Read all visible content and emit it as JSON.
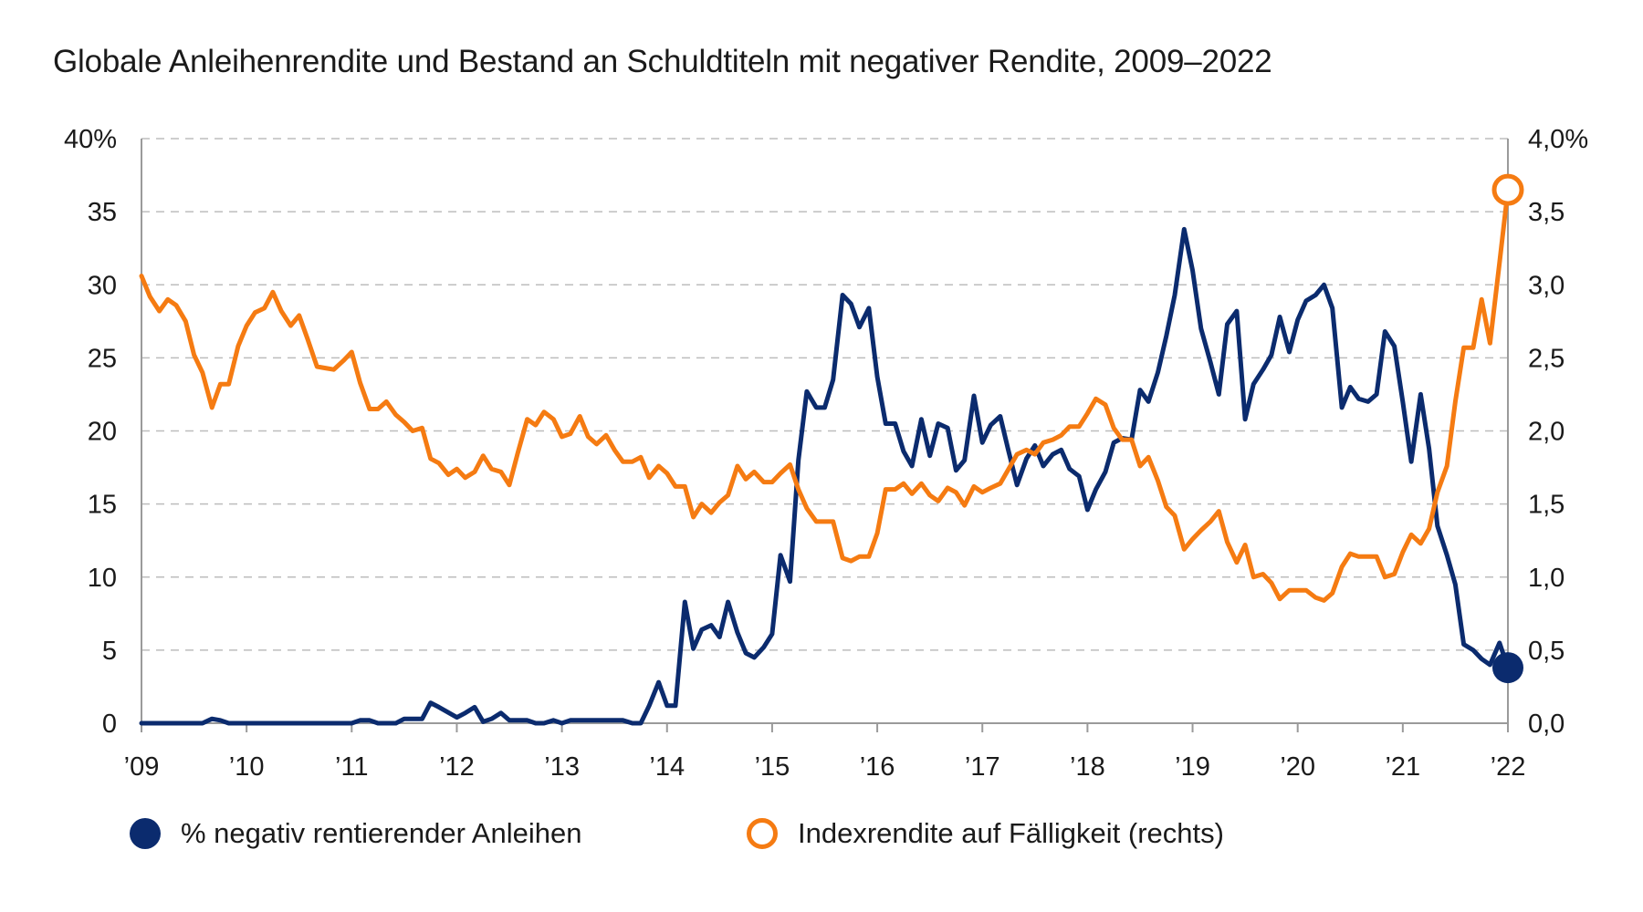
{
  "colors": {
    "negative": "#0b2b6e",
    "yield": "#f57b12",
    "grid": "#bdbdbd",
    "axis": "#9a9a9a"
  },
  "chart_data": {
    "type": "line",
    "title": "Globale Anleihenrendite und Bestand an Schuldtiteln mit negativer Rendite, 2009–2022",
    "x_tick_labels": [
      "’09",
      "’10",
      "’11",
      "’12",
      "’13",
      "’14",
      "’15",
      "’16",
      "’17",
      "’18",
      "’19",
      "’20",
      "’21",
      "’22"
    ],
    "x_range": [
      2009,
      2022
    ],
    "y_left": {
      "range": [
        0,
        40
      ],
      "ticks": [
        0,
        5,
        10,
        15,
        20,
        25,
        30,
        35,
        40
      ],
      "tick_labels": [
        "0",
        "5",
        "10",
        "15",
        "20",
        "25",
        "30",
        "35",
        "40%"
      ]
    },
    "y_right": {
      "range": [
        0,
        4
      ],
      "ticks": [
        0,
        0.5,
        1,
        1.5,
        2,
        2.5,
        3,
        3.5,
        4
      ],
      "tick_labels": [
        "0,0",
        "0,5",
        "1,0",
        "1,5",
        "2,0",
        "2,5",
        "3,0",
        "3,5",
        "4,0%"
      ]
    },
    "grid": "horizontal dashed",
    "legend_position": "bottom",
    "series": [
      {
        "name": "% negativ rentierender Anleihen",
        "axis": "left",
        "points": [
          [
            2009.0,
            0
          ],
          [
            2009.58,
            0
          ],
          [
            2009.67,
            0.3
          ],
          [
            2009.75,
            0.2
          ],
          [
            2009.83,
            0
          ],
          [
            2011.0,
            0
          ],
          [
            2011.08,
            0.2
          ],
          [
            2011.17,
            0.2
          ],
          [
            2011.25,
            0
          ],
          [
            2011.42,
            0
          ],
          [
            2011.5,
            0.3
          ],
          [
            2011.67,
            0.3
          ],
          [
            2011.75,
            1.4
          ],
          [
            2011.83,
            1.1
          ],
          [
            2012.0,
            0.4
          ],
          [
            2012.08,
            0.7
          ],
          [
            2012.17,
            1.1
          ],
          [
            2012.25,
            0.1
          ],
          [
            2012.33,
            0.3
          ],
          [
            2012.42,
            0.7
          ],
          [
            2012.5,
            0.2
          ],
          [
            2012.67,
            0.2
          ],
          [
            2012.75,
            0
          ],
          [
            2012.83,
            0
          ],
          [
            2012.92,
            0.2
          ],
          [
            2013.0,
            0
          ],
          [
            2013.08,
            0.2
          ],
          [
            2013.33,
            0.2
          ],
          [
            2013.58,
            0.2
          ],
          [
            2013.67,
            0
          ],
          [
            2013.75,
            0
          ],
          [
            2013.83,
            1.2
          ],
          [
            2013.92,
            2.8
          ],
          [
            2014.0,
            1.2
          ],
          [
            2014.08,
            1.2
          ],
          [
            2014.17,
            8.3
          ],
          [
            2014.25,
            5.1
          ],
          [
            2014.33,
            6.4
          ],
          [
            2014.42,
            6.7
          ],
          [
            2014.5,
            5.9
          ],
          [
            2014.58,
            8.3
          ],
          [
            2014.67,
            6.2
          ],
          [
            2014.75,
            4.8
          ],
          [
            2014.83,
            4.5
          ],
          [
            2014.92,
            5.2
          ],
          [
            2015.0,
            6.1
          ],
          [
            2015.08,
            11.5
          ],
          [
            2015.17,
            9.7
          ],
          [
            2015.25,
            18
          ],
          [
            2015.33,
            22.7
          ],
          [
            2015.42,
            21.6
          ],
          [
            2015.5,
            21.6
          ],
          [
            2015.58,
            23.5
          ],
          [
            2015.67,
            29.3
          ],
          [
            2015.75,
            28.7
          ],
          [
            2015.83,
            27.1
          ],
          [
            2015.92,
            28.4
          ],
          [
            2016.0,
            23.7
          ],
          [
            2016.08,
            20.5
          ],
          [
            2016.17,
            20.5
          ],
          [
            2016.25,
            18.6
          ],
          [
            2016.33,
            17.6
          ],
          [
            2016.42,
            20.8
          ],
          [
            2016.5,
            18.3
          ],
          [
            2016.58,
            20.5
          ],
          [
            2016.67,
            20.2
          ],
          [
            2016.75,
            17.3
          ],
          [
            2016.83,
            18
          ],
          [
            2016.92,
            22.4
          ],
          [
            2017.0,
            19.2
          ],
          [
            2017.08,
            20.4
          ],
          [
            2017.17,
            21
          ],
          [
            2017.25,
            18.6
          ],
          [
            2017.33,
            16.3
          ],
          [
            2017.42,
            18.1
          ],
          [
            2017.5,
            19
          ],
          [
            2017.58,
            17.6
          ],
          [
            2017.67,
            18.4
          ],
          [
            2017.75,
            18.7
          ],
          [
            2017.83,
            17.4
          ],
          [
            2017.92,
            16.9
          ],
          [
            2018.0,
            14.6
          ],
          [
            2018.08,
            16
          ],
          [
            2018.17,
            17.2
          ],
          [
            2018.25,
            19.2
          ],
          [
            2018.33,
            19.5
          ],
          [
            2018.42,
            19.4
          ],
          [
            2018.5,
            22.8
          ],
          [
            2018.58,
            22
          ],
          [
            2018.67,
            24
          ],
          [
            2018.75,
            26.5
          ],
          [
            2018.83,
            29.3
          ],
          [
            2018.92,
            33.8
          ],
          [
            2019.0,
            31
          ],
          [
            2019.08,
            27
          ],
          [
            2019.17,
            24.7
          ],
          [
            2019.25,
            22.5
          ],
          [
            2019.33,
            27.3
          ],
          [
            2019.42,
            28.2
          ],
          [
            2019.5,
            20.8
          ],
          [
            2019.58,
            23.2
          ],
          [
            2019.67,
            24.2
          ],
          [
            2019.75,
            25.2
          ],
          [
            2019.83,
            27.8
          ],
          [
            2019.92,
            25.4
          ],
          [
            2020.0,
            27.6
          ],
          [
            2020.08,
            28.9
          ],
          [
            2020.17,
            29.3
          ],
          [
            2020.25,
            30
          ],
          [
            2020.33,
            28.4
          ],
          [
            2020.42,
            21.6
          ],
          [
            2020.5,
            23
          ],
          [
            2020.58,
            22.2
          ],
          [
            2020.67,
            22
          ],
          [
            2020.75,
            22.5
          ],
          [
            2020.83,
            26.8
          ],
          [
            2020.92,
            25.8
          ],
          [
            2021.0,
            22
          ],
          [
            2021.08,
            17.9
          ],
          [
            2021.17,
            22.5
          ],
          [
            2021.25,
            18.8
          ],
          [
            2021.33,
            13.5
          ],
          [
            2021.42,
            11.5
          ],
          [
            2021.5,
            9.5
          ],
          [
            2021.58,
            5.4
          ],
          [
            2021.67,
            5
          ],
          [
            2021.75,
            4.4
          ],
          [
            2021.83,
            4
          ],
          [
            2021.92,
            5.5
          ],
          [
            2022.0,
            3.8
          ]
        ]
      },
      {
        "name": "Indexrendite auf Fälligkeit (rechts)",
        "axis": "right",
        "points": [
          [
            2009.0,
            3.06
          ],
          [
            2009.08,
            2.92
          ],
          [
            2009.17,
            2.82
          ],
          [
            2009.25,
            2.9
          ],
          [
            2009.33,
            2.86
          ],
          [
            2009.42,
            2.75
          ],
          [
            2009.5,
            2.52
          ],
          [
            2009.58,
            2.4
          ],
          [
            2009.67,
            2.16
          ],
          [
            2009.75,
            2.32
          ],
          [
            2009.83,
            2.32
          ],
          [
            2009.92,
            2.58
          ],
          [
            2010.0,
            2.72
          ],
          [
            2010.08,
            2.81
          ],
          [
            2010.17,
            2.84
          ],
          [
            2010.25,
            2.95
          ],
          [
            2010.33,
            2.82
          ],
          [
            2010.42,
            2.72
          ],
          [
            2010.5,
            2.79
          ],
          [
            2010.58,
            2.63
          ],
          [
            2010.67,
            2.44
          ],
          [
            2010.75,
            2.43
          ],
          [
            2010.83,
            2.42
          ],
          [
            2010.92,
            2.48
          ],
          [
            2011.0,
            2.54
          ],
          [
            2011.08,
            2.33
          ],
          [
            2011.17,
            2.15
          ],
          [
            2011.25,
            2.15
          ],
          [
            2011.33,
            2.2
          ],
          [
            2011.42,
            2.11
          ],
          [
            2011.5,
            2.06
          ],
          [
            2011.58,
            2
          ],
          [
            2011.67,
            2.02
          ],
          [
            2011.75,
            1.81
          ],
          [
            2011.83,
            1.78
          ],
          [
            2011.92,
            1.7
          ],
          [
            2012.0,
            1.74
          ],
          [
            2012.08,
            1.68
          ],
          [
            2012.17,
            1.72
          ],
          [
            2012.25,
            1.83
          ],
          [
            2012.33,
            1.74
          ],
          [
            2012.42,
            1.72
          ],
          [
            2012.5,
            1.63
          ],
          [
            2012.58,
            1.85
          ],
          [
            2012.67,
            2.08
          ],
          [
            2012.75,
            2.04
          ],
          [
            2012.83,
            2.13
          ],
          [
            2012.92,
            2.08
          ],
          [
            2013.0,
            1.96
          ],
          [
            2013.08,
            1.98
          ],
          [
            2013.17,
            2.1
          ],
          [
            2013.25,
            1.96
          ],
          [
            2013.33,
            1.91
          ],
          [
            2013.42,
            1.97
          ],
          [
            2013.5,
            1.87
          ],
          [
            2013.58,
            1.79
          ],
          [
            2013.67,
            1.79
          ],
          [
            2013.75,
            1.82
          ],
          [
            2013.83,
            1.68
          ],
          [
            2013.92,
            1.76
          ],
          [
            2014.0,
            1.71
          ],
          [
            2014.08,
            1.62
          ],
          [
            2014.17,
            1.62
          ],
          [
            2014.25,
            1.41
          ],
          [
            2014.33,
            1.5
          ],
          [
            2014.42,
            1.44
          ],
          [
            2014.5,
            1.51
          ],
          [
            2014.58,
            1.56
          ],
          [
            2014.67,
            1.76
          ],
          [
            2014.75,
            1.67
          ],
          [
            2014.83,
            1.72
          ],
          [
            2014.92,
            1.65
          ],
          [
            2015.0,
            1.65
          ],
          [
            2015.08,
            1.71
          ],
          [
            2015.17,
            1.77
          ],
          [
            2015.25,
            1.6
          ],
          [
            2015.33,
            1.47
          ],
          [
            2015.42,
            1.38
          ],
          [
            2015.5,
            1.38
          ],
          [
            2015.58,
            1.38
          ],
          [
            2015.67,
            1.13
          ],
          [
            2015.75,
            1.11
          ],
          [
            2015.83,
            1.14
          ],
          [
            2015.92,
            1.14
          ],
          [
            2016.0,
            1.3
          ],
          [
            2016.08,
            1.6
          ],
          [
            2016.17,
            1.6
          ],
          [
            2016.25,
            1.64
          ],
          [
            2016.33,
            1.57
          ],
          [
            2016.42,
            1.64
          ],
          [
            2016.5,
            1.56
          ],
          [
            2016.58,
            1.52
          ],
          [
            2016.67,
            1.61
          ],
          [
            2016.75,
            1.58
          ],
          [
            2016.83,
            1.49
          ],
          [
            2016.92,
            1.62
          ],
          [
            2017.0,
            1.58
          ],
          [
            2017.08,
            1.61
          ],
          [
            2017.17,
            1.64
          ],
          [
            2017.25,
            1.74
          ],
          [
            2017.33,
            1.84
          ],
          [
            2017.42,
            1.87
          ],
          [
            2017.5,
            1.84
          ],
          [
            2017.58,
            1.92
          ],
          [
            2017.67,
            1.94
          ],
          [
            2017.75,
            1.97
          ],
          [
            2017.83,
            2.03
          ],
          [
            2017.92,
            2.03
          ],
          [
            2018.0,
            2.12
          ],
          [
            2018.08,
            2.22
          ],
          [
            2018.17,
            2.18
          ],
          [
            2018.25,
            2.02
          ],
          [
            2018.33,
            1.94
          ],
          [
            2018.42,
            1.94
          ],
          [
            2018.5,
            1.76
          ],
          [
            2018.58,
            1.82
          ],
          [
            2018.67,
            1.66
          ],
          [
            2018.75,
            1.48
          ],
          [
            2018.83,
            1.42
          ],
          [
            2018.92,
            1.19
          ],
          [
            2019.0,
            1.26
          ],
          [
            2019.08,
            1.32
          ],
          [
            2019.17,
            1.38
          ],
          [
            2019.25,
            1.45
          ],
          [
            2019.33,
            1.24
          ],
          [
            2019.42,
            1.1
          ],
          [
            2019.5,
            1.22
          ],
          [
            2019.58,
            1
          ],
          [
            2019.67,
            1.02
          ],
          [
            2019.75,
            0.96
          ],
          [
            2019.83,
            0.85
          ],
          [
            2019.92,
            0.91
          ],
          [
            2020.0,
            0.91
          ],
          [
            2020.08,
            0.91
          ],
          [
            2020.17,
            0.86
          ],
          [
            2020.25,
            0.84
          ],
          [
            2020.33,
            0.89
          ],
          [
            2020.42,
            1.07
          ],
          [
            2020.5,
            1.16
          ],
          [
            2020.58,
            1.14
          ],
          [
            2020.67,
            1.14
          ],
          [
            2020.75,
            1.14
          ],
          [
            2020.83,
            1
          ],
          [
            2020.92,
            1.02
          ],
          [
            2021.0,
            1.17
          ],
          [
            2021.08,
            1.29
          ],
          [
            2021.17,
            1.23
          ],
          [
            2021.25,
            1.33
          ],
          [
            2021.33,
            1.58
          ],
          [
            2021.42,
            1.76
          ],
          [
            2021.5,
            2.2
          ],
          [
            2021.58,
            2.57
          ],
          [
            2021.67,
            2.57
          ],
          [
            2021.75,
            2.9
          ],
          [
            2021.83,
            2.6
          ],
          [
            2021.92,
            3.15
          ],
          [
            2022.0,
            3.65
          ]
        ]
      }
    ]
  }
}
